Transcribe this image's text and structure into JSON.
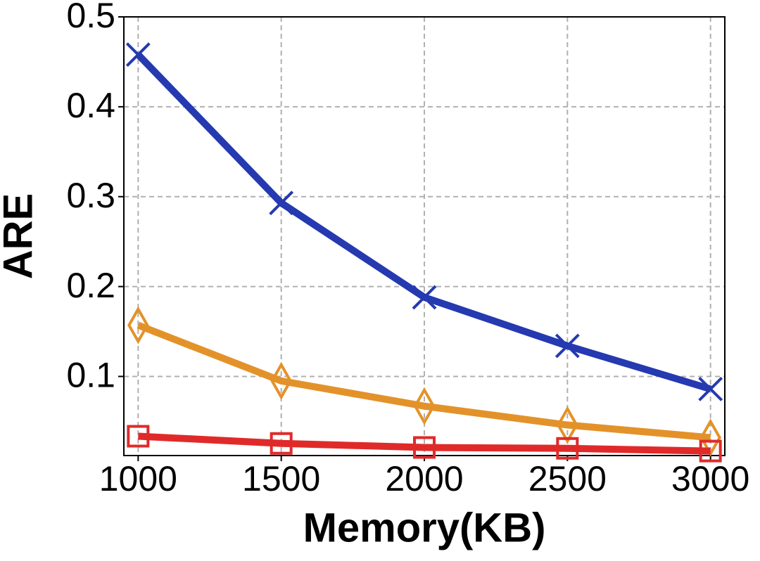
{
  "chart_data": {
    "type": "line",
    "x_label": "Memory(KB)",
    "y_label": "ARE",
    "x": [
      1000,
      1500,
      2000,
      2500,
      3000
    ],
    "series": [
      {
        "color": "#2539b0",
        "marker": "x",
        "values": [
          0.458,
          0.293,
          0.188,
          0.134,
          0.086
        ]
      },
      {
        "color": "#e3922a",
        "marker": "diamond",
        "values": [
          0.157,
          0.095,
          0.067,
          0.046,
          0.032
        ]
      },
      {
        "color": "#e02a2a",
        "marker": "square",
        "values": [
          0.0335,
          0.0255,
          0.021,
          0.02,
          0.017
        ]
      }
    ],
    "xlim": [
      950,
      3050
    ],
    "ylim": [
      0.012,
      0.5
    ],
    "xticks": [
      1000,
      1500,
      2000,
      2500,
      3000
    ],
    "yticks": [
      0.1,
      0.2,
      0.3,
      0.4,
      0.5
    ],
    "grid": true
  }
}
